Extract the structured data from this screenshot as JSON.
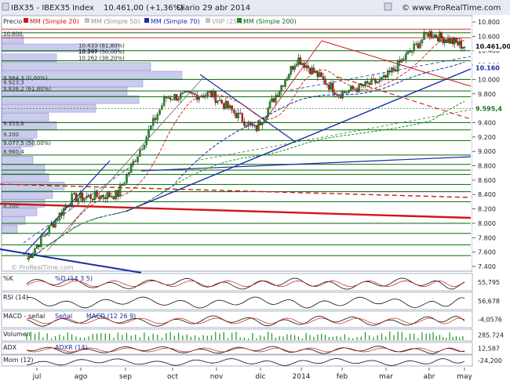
{
  "header": {
    "symbol": "IBX35 - IBEX35 Index",
    "price": "10.461,00 (+1,36%)",
    "period": "Diario",
    "date": "29 abr 2014",
    "source": "© www.ProRealTime.com"
  },
  "legend": {
    "precio": "Precio",
    "mm20": "MM (Simple 20)",
    "mm50": "MM (Simple 50)",
    "mm70": "MM (Simple 70)",
    "vnp": "VNP (25,1)",
    "mm200": "MM (Simple 200)"
  },
  "watermark": "© ProRealTime.com",
  "colors": {
    "up": "#1a9a1a",
    "down": "#d01818",
    "ma20": "#d01818",
    "ma70": "#1a2aa8",
    "ma200": "#1a8a1a",
    "grid_h": "#1a7a1a",
    "profile": "#8c8cd8",
    "price_tag": "#1a1a1a"
  },
  "chart_data": {
    "type": "candlestick",
    "x_labels": [
      "jul",
      "ago",
      "sep",
      "oct",
      "nov",
      "dic",
      "2014",
      "feb",
      "mar",
      "abr",
      "may"
    ],
    "y_ticks": [
      "10.800",
      "10.600",
      "10.400",
      "10.200",
      "10.000",
      "9.800",
      "9.600",
      "9.400",
      "9.200",
      "9.000",
      "8.800",
      "8.600",
      "8.400",
      "8.200",
      "8.000",
      "7.800",
      "7.600",
      "7.400"
    ],
    "ylim": [
      7320,
      10880
    ],
    "last_price": "10.461,00",
    "level_tags": [
      "10.160",
      "9.595,4"
    ],
    "price_levels": [
      {
        "label": "10.600",
        "value": 10600
      },
      {
        "label": "10.433 (61,80%)",
        "value": 10433
      },
      {
        "label": "10.347 (50,00%)",
        "value": 10347
      },
      {
        "label": "10.262 (38,20%)",
        "value": 10262
      },
      {
        "label": "10.360",
        "value": 10360
      },
      {
        "label": "9.984,3 (0,00%)",
        "value": 9984
      },
      {
        "label": "9.923,3",
        "value": 9923
      },
      {
        "label": "9.838,2 (61,80%)",
        "value": 9838
      },
      {
        "label": "9.353,6",
        "value": 9353
      },
      {
        "label": "9.200",
        "value": 9200
      },
      {
        "label": "9.077,5 (50,00%)",
        "value": 9077
      },
      {
        "label": "8.960,4",
        "value": 8960
      },
      {
        "label": "8.200",
        "value": 8200
      }
    ],
    "candles_summary": "Daily IBEX35 from mid-June 2013 (~7.500) rising to ~10.461 on 29 abr 2014",
    "key_points": [
      {
        "date": "jul",
        "price": 7500
      },
      {
        "date": "ago",
        "price": 8350
      },
      {
        "date": "sep",
        "price": 8400
      },
      {
        "date": "oct",
        "price": 9750
      },
      {
        "date": "nov",
        "price": 9800
      },
      {
        "date": "dic",
        "price": 9300
      },
      {
        "date": "2014",
        "price": 10300
      },
      {
        "date": "feb",
        "price": 9800
      },
      {
        "date": "mar",
        "price": 10000
      },
      {
        "date": "abr",
        "price": 10650
      },
      {
        "date": "may",
        "price": 10461
      }
    ]
  },
  "indicators": [
    {
      "name": "%K",
      "legend2": "%D (14 3 5)",
      "value": "55,795"
    },
    {
      "name": "RSI (14)",
      "legend2": "",
      "value": "56,678"
    },
    {
      "name": "MACD - señal",
      "legend2": "Señal",
      "legend3": "MACD (12 26 9)",
      "value": "-4,0576"
    },
    {
      "name": "Volumen",
      "legend2": "",
      "value": "285.724"
    },
    {
      "name": "ADX",
      "legend2": "ADXR (14)",
      "value": "12,587"
    },
    {
      "name": "Mom (12)",
      "legend2": "",
      "value": "-24,200"
    }
  ]
}
